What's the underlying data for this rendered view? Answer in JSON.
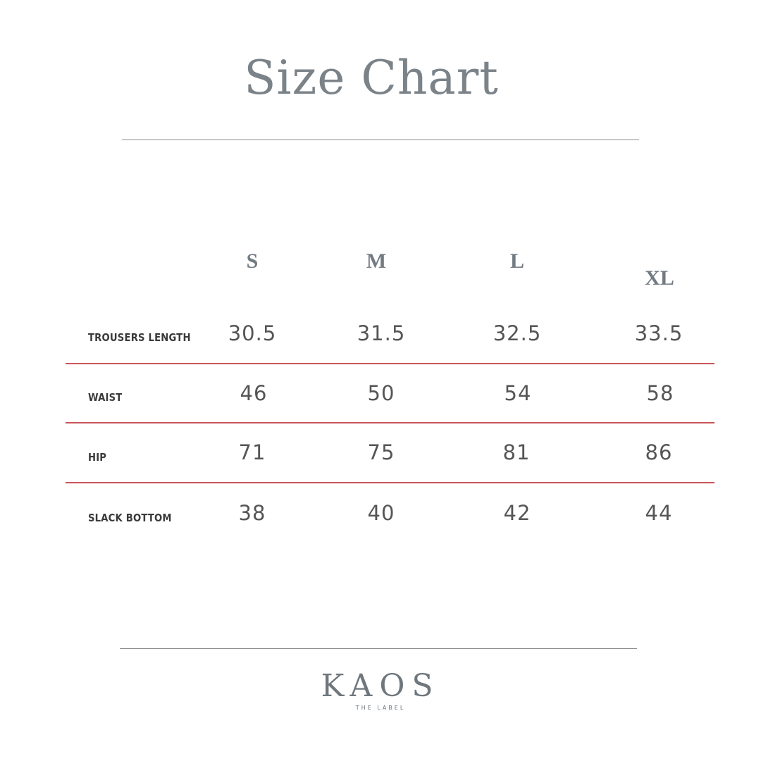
{
  "title": "Size Chart",
  "sizes": [
    "S",
    "M",
    "L",
    "XL"
  ],
  "rows": [
    {
      "label": "TROUSERS LENGTH",
      "values": [
        "30.5",
        "31.5",
        "32.5",
        "33.5"
      ]
    },
    {
      "label": "WAIST",
      "values": [
        "46",
        "50",
        "54",
        "58"
      ]
    },
    {
      "label": "HIP",
      "values": [
        "71",
        "75",
        "81",
        "86"
      ]
    },
    {
      "label": "SLACK BOTTOM",
      "values": [
        "38",
        "40",
        "42",
        "44"
      ]
    }
  ],
  "colors": {
    "title": "#7b8389",
    "divider": "#c9555a"
  },
  "logo": {
    "name": "KAOS",
    "tagline": "THE LABEL"
  }
}
